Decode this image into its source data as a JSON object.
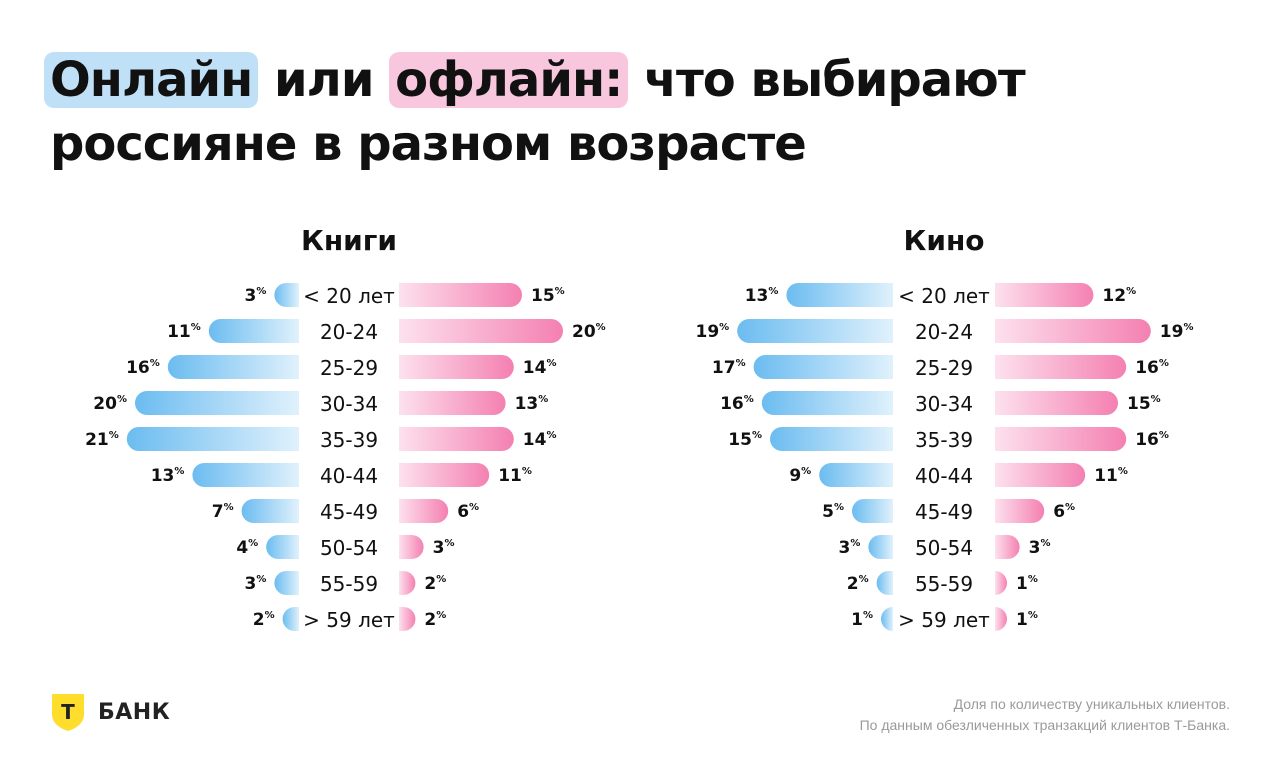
{
  "title": {
    "part1": "Онлайн",
    "part2": "или",
    "part3": "офлайн:",
    "part4": "что выбирают",
    "line2": "россияне в разном возрасте"
  },
  "colors": {
    "online": "#6bbcf0",
    "offline": "#f480b1",
    "highlight_online": "#bfe0f7",
    "highlight_offline": "#f8c6dd"
  },
  "chart_data": [
    {
      "type": "bar",
      "title": "Книги",
      "categories": [
        "< 20 лет",
        "20-24",
        "25-29",
        "30-34",
        "35-39",
        "40-44",
        "45-49",
        "50-54",
        "55-59",
        "> 59 лет"
      ],
      "series": [
        {
          "values": [
            3,
            11,
            16,
            20,
            21,
            13,
            7,
            4,
            3,
            2
          ]
        },
        {
          "values": [
            15,
            20,
            14,
            13,
            14,
            11,
            6,
            3,
            2,
            2
          ]
        }
      ],
      "unit": "%"
    },
    {
      "type": "bar",
      "title": "Кино",
      "categories": [
        "< 20 лет",
        "20-24",
        "25-29",
        "30-34",
        "35-39",
        "40-44",
        "45-49",
        "50-54",
        "55-59",
        "> 59 лет"
      ],
      "series": [
        {
          "values": [
            13,
            19,
            17,
            16,
            15,
            9,
            5,
            3,
            2,
            1
          ]
        },
        {
          "values": [
            12,
            19,
            16,
            15,
            16,
            11,
            6,
            3,
            1,
            1
          ]
        }
      ],
      "unit": "%"
    }
  ],
  "logo": {
    "letter": "Т",
    "text": "БАНК"
  },
  "footnote": {
    "line1": "Доля по количеству уникальных клиентов.",
    "line2": "По данным обезличенных транзакций клиентов Т-Банка."
  }
}
